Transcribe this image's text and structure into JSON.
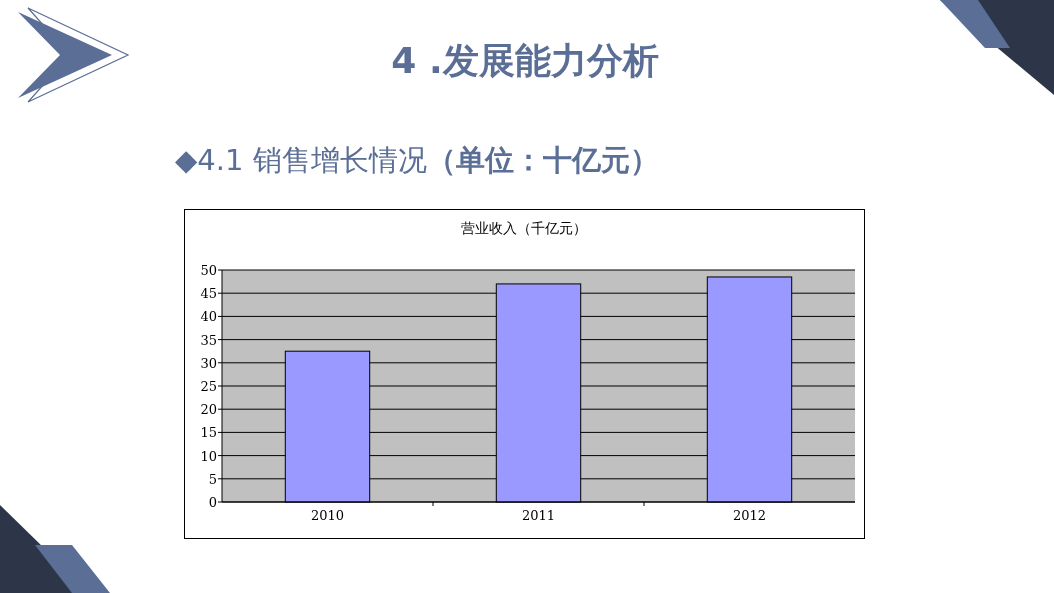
{
  "chart_data": {
    "type": "bar",
    "title": "营业收入（千亿元）",
    "annotations": [
      "4 .发展能力分析",
      "◆4.1 销售增长情况**（单位：十亿元）**"
    ],
    "categories": [
      "2010",
      "2011",
      "2012"
    ],
    "values": [
      32.5,
      47,
      48.5
    ],
    "color": "#9999ff",
    "ylim": [
      0,
      50
    ],
    "yticks": [
      0,
      5,
      10,
      15,
      20,
      25,
      30,
      35,
      40,
      45,
      50
    ],
    "grid": "y"
  }
}
